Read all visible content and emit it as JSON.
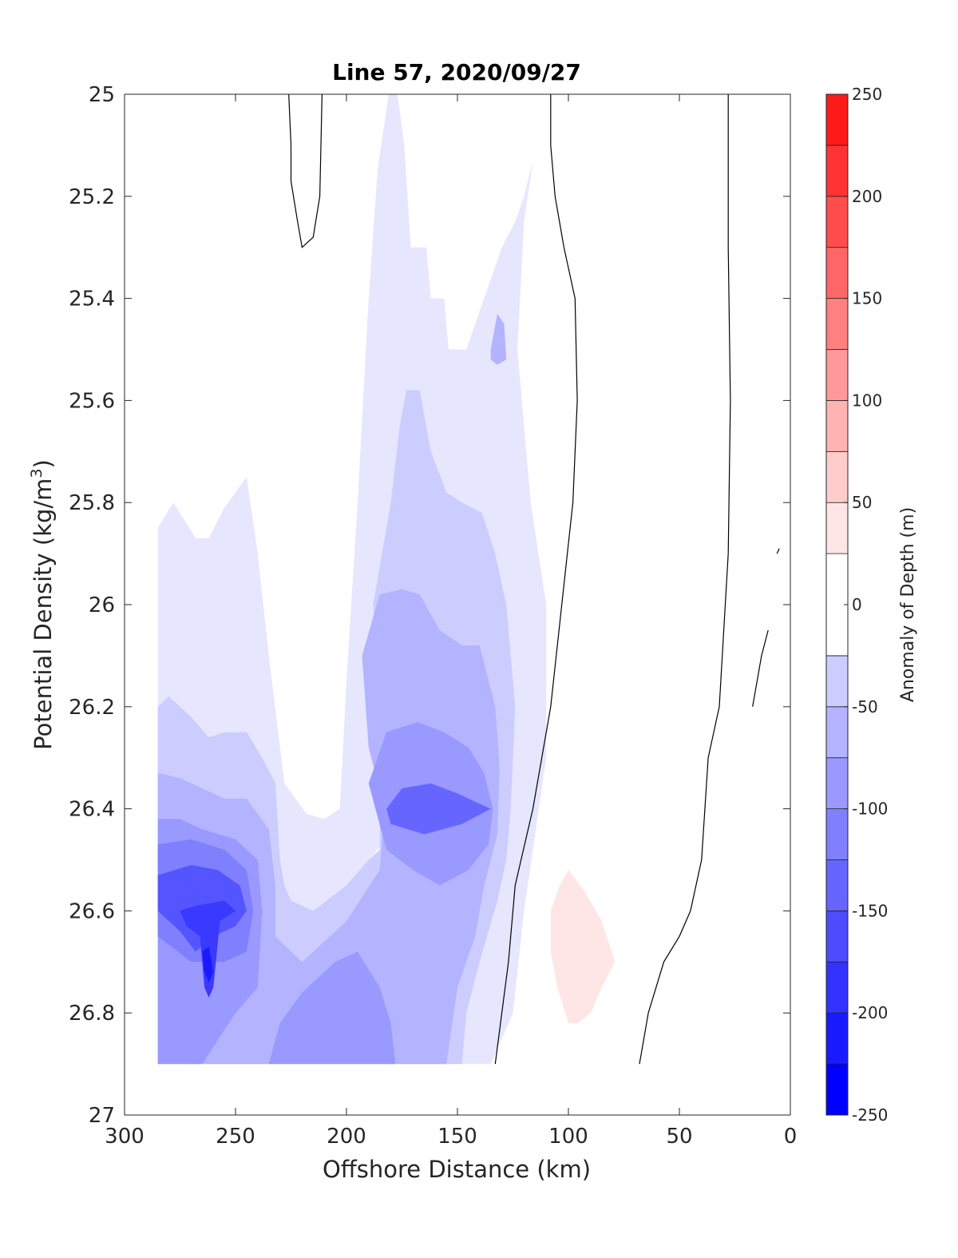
{
  "chart_data": {
    "type": "contour",
    "title": "Line 57, 2020/09/27",
    "xlabel": "Offshore Distance (km)",
    "ylabel": "Potential Density (kg/m",
    "ylabel_sup": "3",
    "ylabel_close": ")",
    "xlim": [
      300,
      0
    ],
    "ylim": [
      25,
      27
    ],
    "y_reversed": true,
    "x_reversed": true,
    "x_ticks": [
      300,
      250,
      200,
      150,
      100,
      50,
      0
    ],
    "y_ticks": [
      25,
      25.2,
      25.4,
      25.6,
      25.8,
      26,
      26.2,
      26.4,
      26.6,
      26.8,
      27
    ],
    "y_tick_labels": [
      "25",
      "25.2",
      "25.4",
      "25.6",
      "25.8",
      "26",
      "26.2",
      "26.4",
      "26.6",
      "26.8",
      "27"
    ],
    "colorbar": {
      "label": "Anomaly of Depth (m)",
      "range": [
        -250,
        250
      ],
      "ticks": [
        250,
        200,
        150,
        100,
        50,
        0,
        -50,
        -100,
        -150,
        -200,
        -250
      ],
      "levels": [
        -250,
        -225,
        -200,
        -175,
        -150,
        -125,
        -100,
        -75,
        -50,
        -25,
        25,
        50,
        75,
        100,
        125,
        150,
        175,
        200,
        225,
        250
      ],
      "colors": [
        "#0000ff",
        "#1a1aff",
        "#3333ff",
        "#4d4dff",
        "#6666ff",
        "#8080ff",
        "#9999ff",
        "#b3b3ff",
        "#ccccff",
        "#e6e6ff",
        "#ffffff",
        "#ffe6e6",
        "#ffcccc",
        "#ffb3b3",
        "#ff9999",
        "#ff8080",
        "#ff6666",
        "#ff4d4d",
        "#ff3333",
        "#ff1a1a",
        "#ff0000"
      ]
    },
    "regions": [
      {
        "name": "anomaly-25-to-50",
        "value_range": [
          -50,
          -25
        ],
        "color": "#e6e6ff",
        "points": [
          [
            285,
            25.85
          ],
          [
            278,
            25.8
          ],
          [
            268,
            25.87
          ],
          [
            262,
            25.87
          ],
          [
            255,
            25.81
          ],
          [
            245,
            25.75
          ],
          [
            240,
            25.9
          ],
          [
            235,
            26.1
          ],
          [
            228,
            26.35
          ],
          [
            218,
            26.41
          ],
          [
            210,
            26.42
          ],
          [
            203,
            26.4
          ],
          [
            200,
            26.15
          ],
          [
            195,
            25.8
          ],
          [
            190,
            25.4
          ],
          [
            186,
            25.15
          ],
          [
            181,
            25
          ],
          [
            177,
            25
          ],
          [
            174,
            25.1
          ],
          [
            171,
            25.3
          ],
          [
            164,
            25.3
          ],
          [
            162,
            25.4
          ],
          [
            156,
            25.4
          ],
          [
            154,
            25.5
          ],
          [
            146,
            25.5
          ],
          [
            138,
            25.4
          ],
          [
            130,
            25.3
          ],
          [
            124,
            25.25
          ],
          [
            120,
            25.2
          ],
          [
            116,
            25.13
          ],
          [
            120,
            25.25
          ],
          [
            123,
            25.5
          ],
          [
            117,
            25.8
          ],
          [
            110,
            26.0
          ],
          [
            110,
            26.3
          ],
          [
            120,
            26.6
          ],
          [
            125,
            26.8
          ],
          [
            135,
            26.9
          ],
          [
            158,
            26.9
          ],
          [
            162,
            26.8
          ],
          [
            167,
            26.7
          ],
          [
            172,
            26.6
          ],
          [
            178,
            26.52
          ],
          [
            180,
            26.48
          ],
          [
            180,
            26.45
          ],
          [
            200,
            26.55
          ],
          [
            215,
            26.6
          ],
          [
            228,
            26.62
          ],
          [
            240,
            26.65
          ],
          [
            250,
            26.75
          ],
          [
            260,
            26.9
          ],
          [
            285,
            26.9
          ]
        ]
      },
      {
        "name": "anomaly-50-to-75",
        "value_range": [
          -75,
          -50
        ],
        "color": "#ccccff",
        "points": [
          [
            285,
            26.2
          ],
          [
            280,
            26.18
          ],
          [
            270,
            26.22
          ],
          [
            262,
            26.26
          ],
          [
            255,
            26.25
          ],
          [
            245,
            26.25
          ],
          [
            238,
            26.3
          ],
          [
            232,
            26.35
          ],
          [
            230,
            26.5
          ],
          [
            228,
            26.55
          ],
          [
            225,
            26.58
          ],
          [
            215,
            26.6
          ],
          [
            200,
            26.55
          ],
          [
            190,
            26.5
          ],
          [
            185,
            26.48
          ],
          [
            185,
            26.2
          ],
          [
            188,
            26.0
          ],
          [
            184,
            25.9
          ],
          [
            180,
            25.8
          ],
          [
            176,
            25.65
          ],
          [
            173,
            25.58
          ],
          [
            167,
            25.58
          ],
          [
            162,
            25.7
          ],
          [
            155,
            25.78
          ],
          [
            148,
            25.8
          ],
          [
            139,
            25.82
          ],
          [
            133,
            25.9
          ],
          [
            128,
            26.0
          ],
          [
            124,
            26.2
          ],
          [
            126,
            26.4
          ],
          [
            128,
            26.5
          ],
          [
            132,
            26.58
          ],
          [
            140,
            26.7
          ],
          [
            146,
            26.8
          ],
          [
            148,
            26.9
          ],
          [
            285,
            26.9
          ]
        ]
      },
      {
        "name": "anomaly-75-to-100",
        "value_range": [
          -100,
          -75
        ],
        "color": "#b3b3ff",
        "points": [
          [
            285,
            26.33
          ],
          [
            275,
            26.34
          ],
          [
            265,
            26.36
          ],
          [
            255,
            26.38
          ],
          [
            245,
            26.38
          ],
          [
            235,
            26.44
          ],
          [
            232,
            26.55
          ],
          [
            232,
            26.65
          ],
          [
            225,
            26.68
          ],
          [
            220,
            26.7
          ],
          [
            200,
            26.62
          ],
          [
            185,
            26.52
          ],
          [
            183,
            26.4
          ],
          [
            190,
            26.28
          ],
          [
            193,
            26.1
          ],
          [
            185,
            25.98
          ],
          [
            175,
            25.97
          ],
          [
            167,
            25.98
          ],
          [
            158,
            26.05
          ],
          [
            148,
            26.08
          ],
          [
            140,
            26.08
          ],
          [
            133,
            26.2
          ],
          [
            131,
            26.32
          ],
          [
            132,
            26.45
          ],
          [
            138,
            26.55
          ],
          [
            142,
            26.65
          ],
          [
            150,
            26.75
          ],
          [
            155,
            26.9
          ],
          [
            285,
            26.9
          ]
        ]
      },
      {
        "name": "anomaly-100-to-125",
        "value_range": [
          -125,
          -100
        ],
        "color": "#9999ff",
        "points": [
          [
            285,
            26.42
          ],
          [
            275,
            26.42
          ],
          [
            265,
            26.44
          ],
          [
            250,
            26.46
          ],
          [
            240,
            26.5
          ],
          [
            238,
            26.6
          ],
          [
            240,
            26.75
          ],
          [
            250,
            26.8
          ],
          [
            265,
            26.9
          ],
          [
            285,
            26.9
          ]
        ]
      },
      {
        "name": "anomaly-100-to-125-east",
        "value_range": [
          -125,
          -100
        ],
        "color": "#9999ff",
        "points": [
          [
            190,
            26.35
          ],
          [
            182,
            26.25
          ],
          [
            168,
            26.23
          ],
          [
            156,
            26.25
          ],
          [
            145,
            26.28
          ],
          [
            138,
            26.33
          ],
          [
            134,
            26.4
          ],
          [
            136,
            26.47
          ],
          [
            145,
            26.52
          ],
          [
            158,
            26.55
          ],
          [
            170,
            26.52
          ],
          [
            182,
            26.48
          ]
        ]
      },
      {
        "name": "anomaly-100-to-125-south",
        "value_range": [
          -125,
          -100
        ],
        "color": "#9999ff",
        "points": [
          [
            235,
            26.9
          ],
          [
            230,
            26.82
          ],
          [
            220,
            26.76
          ],
          [
            205,
            26.7
          ],
          [
            195,
            26.68
          ],
          [
            185,
            26.75
          ],
          [
            180,
            26.82
          ],
          [
            178,
            26.9
          ]
        ]
      },
      {
        "name": "anomaly-125-to-150-east",
        "value_range": [
          -150,
          -125
        ],
        "color": "#6666ff",
        "points": [
          [
            182,
            26.4
          ],
          [
            175,
            26.36
          ],
          [
            162,
            26.35
          ],
          [
            150,
            26.37
          ],
          [
            135,
            26.4
          ],
          [
            148,
            26.43
          ],
          [
            165,
            26.45
          ],
          [
            180,
            26.43
          ]
        ]
      },
      {
        "name": "anomaly-125-to-150-west",
        "value_range": [
          -150,
          -125
        ],
        "color": "#8080ff",
        "points": [
          [
            285,
            26.47
          ],
          [
            270,
            26.46
          ],
          [
            255,
            26.48
          ],
          [
            245,
            26.52
          ],
          [
            242,
            26.6
          ],
          [
            245,
            26.68
          ],
          [
            255,
            26.7
          ],
          [
            270,
            26.7
          ],
          [
            285,
            26.65
          ]
        ]
      },
      {
        "name": "anomaly-150-to-175",
        "value_range": [
          -175,
          -150
        ],
        "color": "#5555ff",
        "points": [
          [
            285,
            26.53
          ],
          [
            270,
            26.51
          ],
          [
            258,
            26.52
          ],
          [
            248,
            26.55
          ],
          [
            245,
            26.6
          ],
          [
            250,
            26.63
          ],
          [
            260,
            26.65
          ],
          [
            268,
            26.68
          ],
          [
            275,
            26.64
          ],
          [
            285,
            26.6
          ]
        ]
      },
      {
        "name": "anomaly-175-to-200",
        "value_range": [
          -200,
          -175
        ],
        "color": "#3939ff",
        "points": [
          [
            275,
            26.6
          ],
          [
            268,
            26.59
          ],
          [
            255,
            26.58
          ],
          [
            250,
            26.6
          ],
          [
            257,
            26.62
          ],
          [
            260,
            26.75
          ],
          [
            262,
            26.77
          ],
          [
            264,
            26.75
          ],
          [
            266,
            26.65
          ],
          [
            272,
            26.63
          ]
        ]
      },
      {
        "name": "anomaly-200-to-225",
        "value_range": [
          -225,
          -200
        ],
        "color": "#1a1aff",
        "points": [
          [
            265,
            26.68
          ],
          [
            262,
            26.67
          ],
          [
            260,
            26.72
          ],
          [
            262,
            26.74
          ],
          [
            264,
            26.72
          ]
        ]
      },
      {
        "name": "anomaly-pos-25-to-50",
        "value_range": [
          25,
          50
        ],
        "color": "#ffe6e6",
        "points": [
          [
            104,
            26.55
          ],
          [
            100,
            26.52
          ],
          [
            93,
            26.56
          ],
          [
            85,
            26.62
          ],
          [
            79,
            26.7
          ],
          [
            85,
            26.75
          ],
          [
            90,
            26.8
          ],
          [
            96,
            26.82
          ],
          [
            100,
            26.82
          ],
          [
            105,
            26.75
          ],
          [
            108,
            26.68
          ],
          [
            108,
            26.6
          ]
        ]
      },
      {
        "name": "anomaly-125-to-150-small",
        "value_range": [
          -150,
          -125
        ],
        "color": "#b3b3ff",
        "points": [
          [
            135,
            25.5
          ],
          [
            132,
            25.43
          ],
          [
            129,
            25.45
          ],
          [
            128,
            25.52
          ],
          [
            132,
            25.53
          ],
          [
            135,
            25.52
          ]
        ]
      }
    ],
    "zero_contours": [
      {
        "name": "zero-contour-north",
        "points": [
          [
            226,
            25
          ],
          [
            225,
            25.1
          ],
          [
            225,
            25.17
          ],
          [
            222,
            25.25
          ],
          [
            220,
            25.3
          ],
          [
            215,
            25.28
          ],
          [
            212,
            25.2
          ],
          [
            211,
            25
          ]
        ]
      },
      {
        "name": "zero-contour-mid",
        "points": [
          [
            108,
            25
          ],
          [
            108,
            25.1
          ],
          [
            106,
            25.2
          ],
          [
            102,
            25.3
          ],
          [
            97,
            25.4
          ],
          [
            96,
            25.6
          ],
          [
            98,
            25.8
          ],
          [
            103,
            26.0
          ],
          [
            108,
            26.2
          ],
          [
            116,
            26.4
          ],
          [
            124,
            26.55
          ],
          [
            127,
            26.7
          ],
          [
            130,
            26.8
          ],
          [
            133,
            26.9
          ]
        ]
      },
      {
        "name": "zero-contour-east",
        "points": [
          [
            28,
            25
          ],
          [
            28,
            25.3
          ],
          [
            27,
            25.6
          ],
          [
            28,
            25.9
          ],
          [
            32,
            26.2
          ],
          [
            37,
            26.3
          ],
          [
            40,
            26.5
          ],
          [
            45,
            26.6
          ],
          [
            50,
            26.65
          ],
          [
            57,
            26.7
          ],
          [
            64,
            26.8
          ],
          [
            68,
            26.9
          ]
        ]
      },
      {
        "name": "zero-contour-fragment-1",
        "points": [
          [
            6,
            25.9
          ],
          [
            5,
            25.89
          ]
        ]
      },
      {
        "name": "zero-contour-fragment-2",
        "points": [
          [
            17,
            26.2
          ],
          [
            13,
            26.1
          ],
          [
            10,
            26.05
          ]
        ]
      }
    ]
  }
}
